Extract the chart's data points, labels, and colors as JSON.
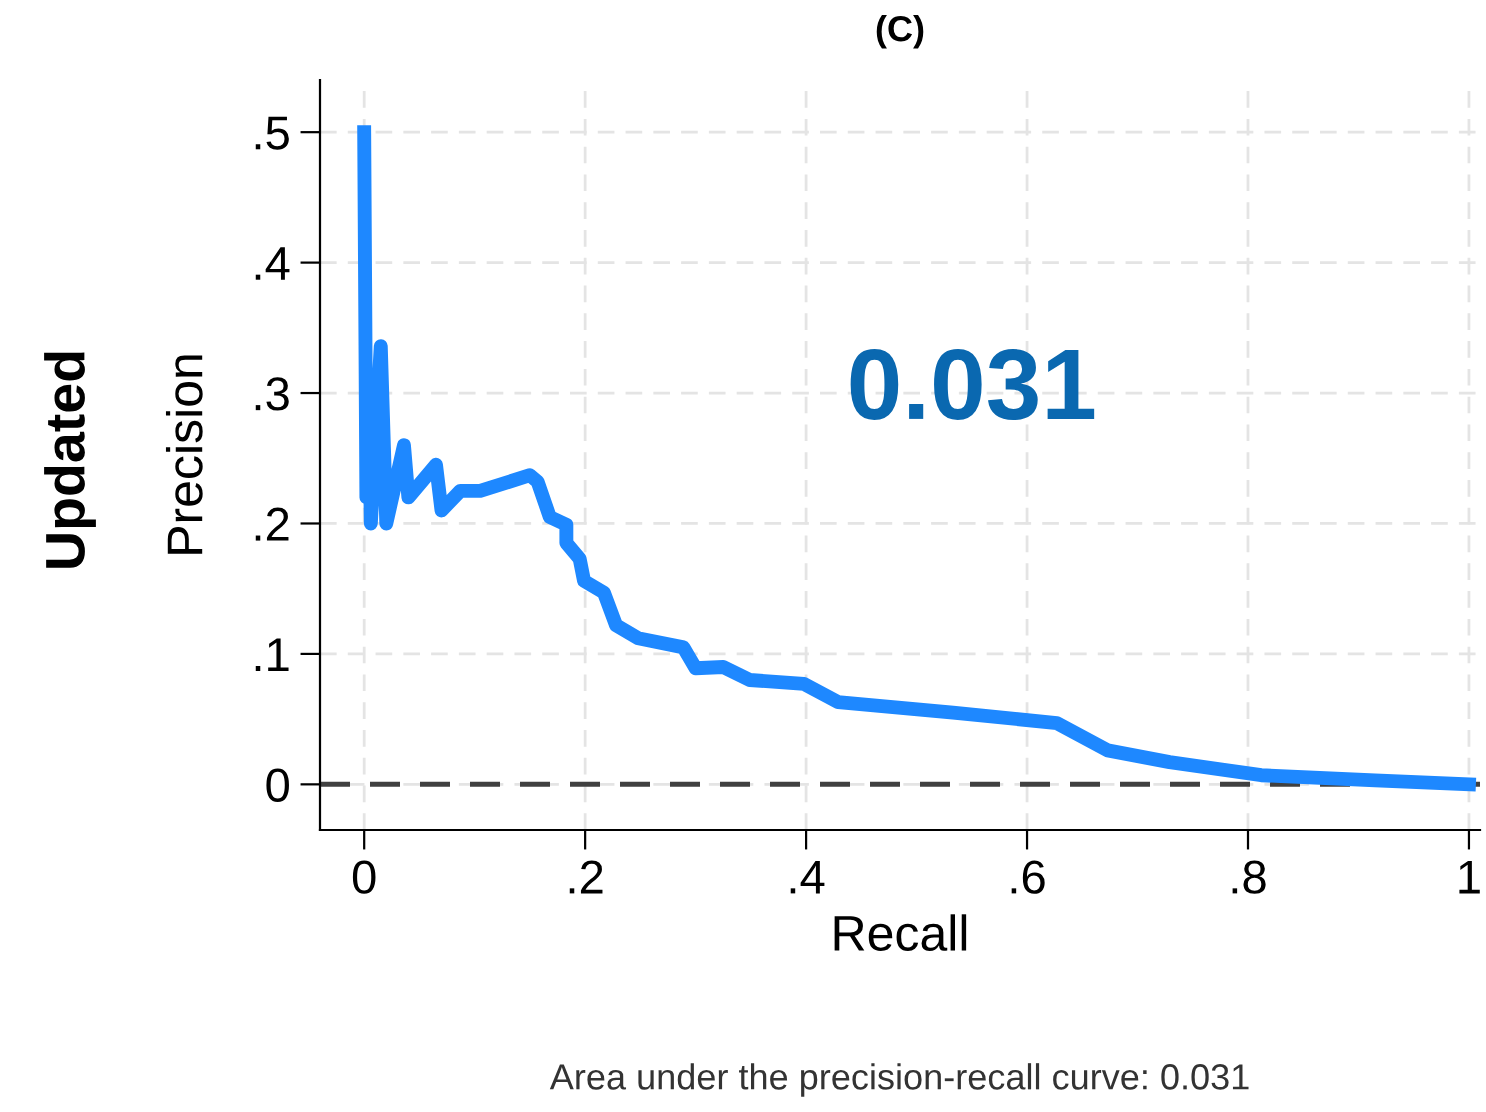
{
  "chart_data": {
    "type": "line",
    "title": "(C)",
    "xlabel": "Recall",
    "ylabel": "Precision",
    "annotations": [
      "Updated",
      "0.031",
      "Area under the precision-recall curve: 0.031"
    ],
    "x": [
      0,
      0.002,
      0.004,
      0.006,
      0.015,
      0.02,
      0.036,
      0.04,
      0.065,
      0.07,
      0.087,
      0.105,
      0.15,
      0.157,
      0.168,
      0.183,
      0.183,
      0.195,
      0.199,
      0.217,
      0.228,
      0.248,
      0.289,
      0.3,
      0.325,
      0.349,
      0.398,
      0.429,
      0.533,
      0.627,
      0.673,
      0.729,
      0.812,
      0.915,
      1
    ],
    "series": [
      {
        "color": "#1e88ff",
        "values": [
          0.5,
          0.22,
          0.31,
          0.2,
          0.336,
          0.2,
          0.26,
          0.22,
          0.245,
          0.21,
          0.225,
          0.225,
          0.237,
          0.232,
          0.205,
          0.199,
          0.185,
          0.173,
          0.156,
          0.147,
          0.122,
          0.112,
          0.105,
          0.089,
          0.09,
          0.08,
          0.077,
          0.063,
          0.055,
          0.047,
          0.026,
          0.017,
          0.007,
          0.003,
          0
        ]
      }
    ],
    "xlim": [
      -0.04,
      1.01
    ],
    "ylim": [
      -0.035,
      0.54
    ],
    "xticks": [
      0,
      {
        "value": 0.2,
        "label": ".2"
      },
      {
        "value": 0.4,
        "label": ".4"
      },
      {
        "value": 0.6,
        "label": ".6"
      },
      {
        "value": 0.8,
        "label": ".8"
      },
      1
    ],
    "yticks": [
      0,
      {
        "value": 0.1,
        "label": ".1"
      },
      {
        "value": 0.2,
        "label": ".2"
      },
      {
        "value": 0.3,
        "label": ".3"
      },
      {
        "value": 0.4,
        "label": ".4"
      },
      {
        "value": 0.5,
        "label": ".5"
      }
    ],
    "ref_lines": [
      {
        "axis": "y",
        "value": 0,
        "color": "#404040",
        "line_style": "dashed"
      }
    ],
    "grid": true,
    "marker": "none",
    "line_style": "solid"
  }
}
